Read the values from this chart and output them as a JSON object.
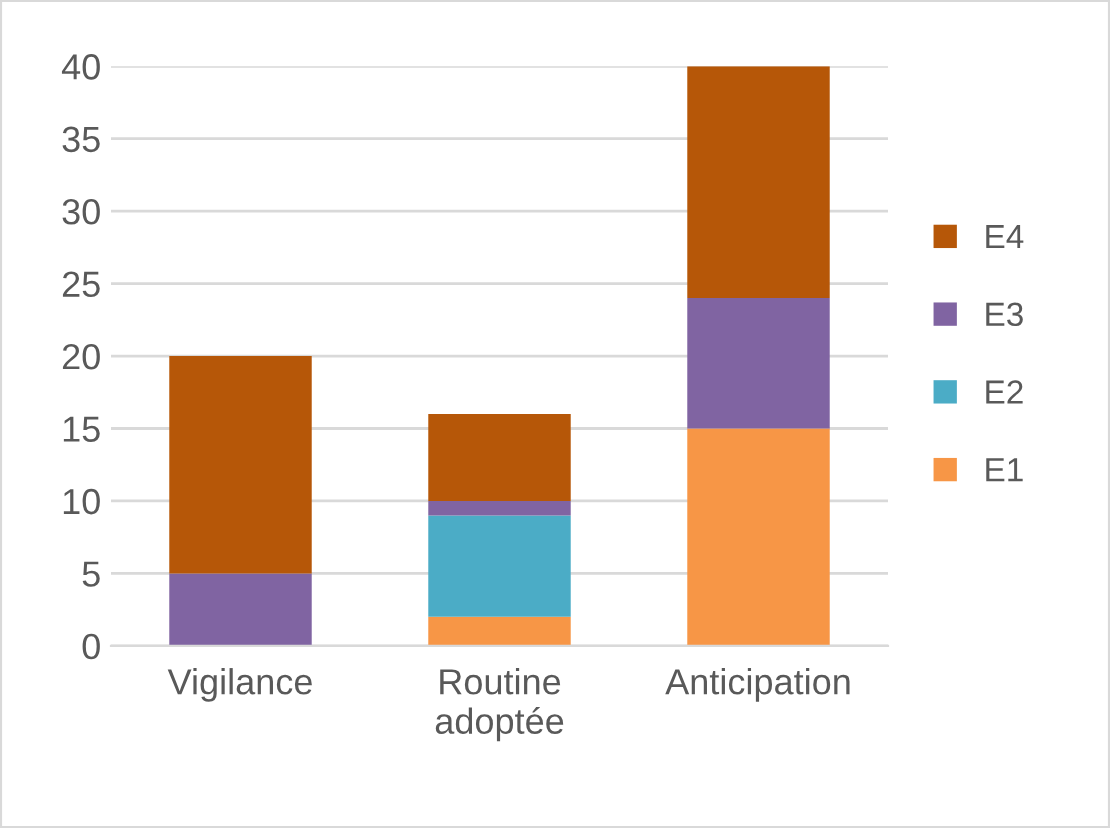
{
  "chart_data": {
    "type": "bar",
    "stacked": true,
    "categories": [
      "Vigilance",
      "Routine adoptée",
      "Anticipation"
    ],
    "series": [
      {
        "name": "E1",
        "color": "#f79646",
        "values": [
          0,
          2,
          15
        ]
      },
      {
        "name": "E2",
        "color": "#4bacc6",
        "values": [
          0,
          7,
          0
        ]
      },
      {
        "name": "E3",
        "color": "#8064a2",
        "values": [
          5,
          1,
          9
        ]
      },
      {
        "name": "E4",
        "color": "#b65708",
        "values": [
          15,
          6,
          16
        ]
      }
    ],
    "ylim": [
      0,
      40
    ],
    "yticks": [
      0,
      5,
      10,
      15,
      20,
      25,
      30,
      35,
      40
    ],
    "grid": "y",
    "legend": "right"
  }
}
